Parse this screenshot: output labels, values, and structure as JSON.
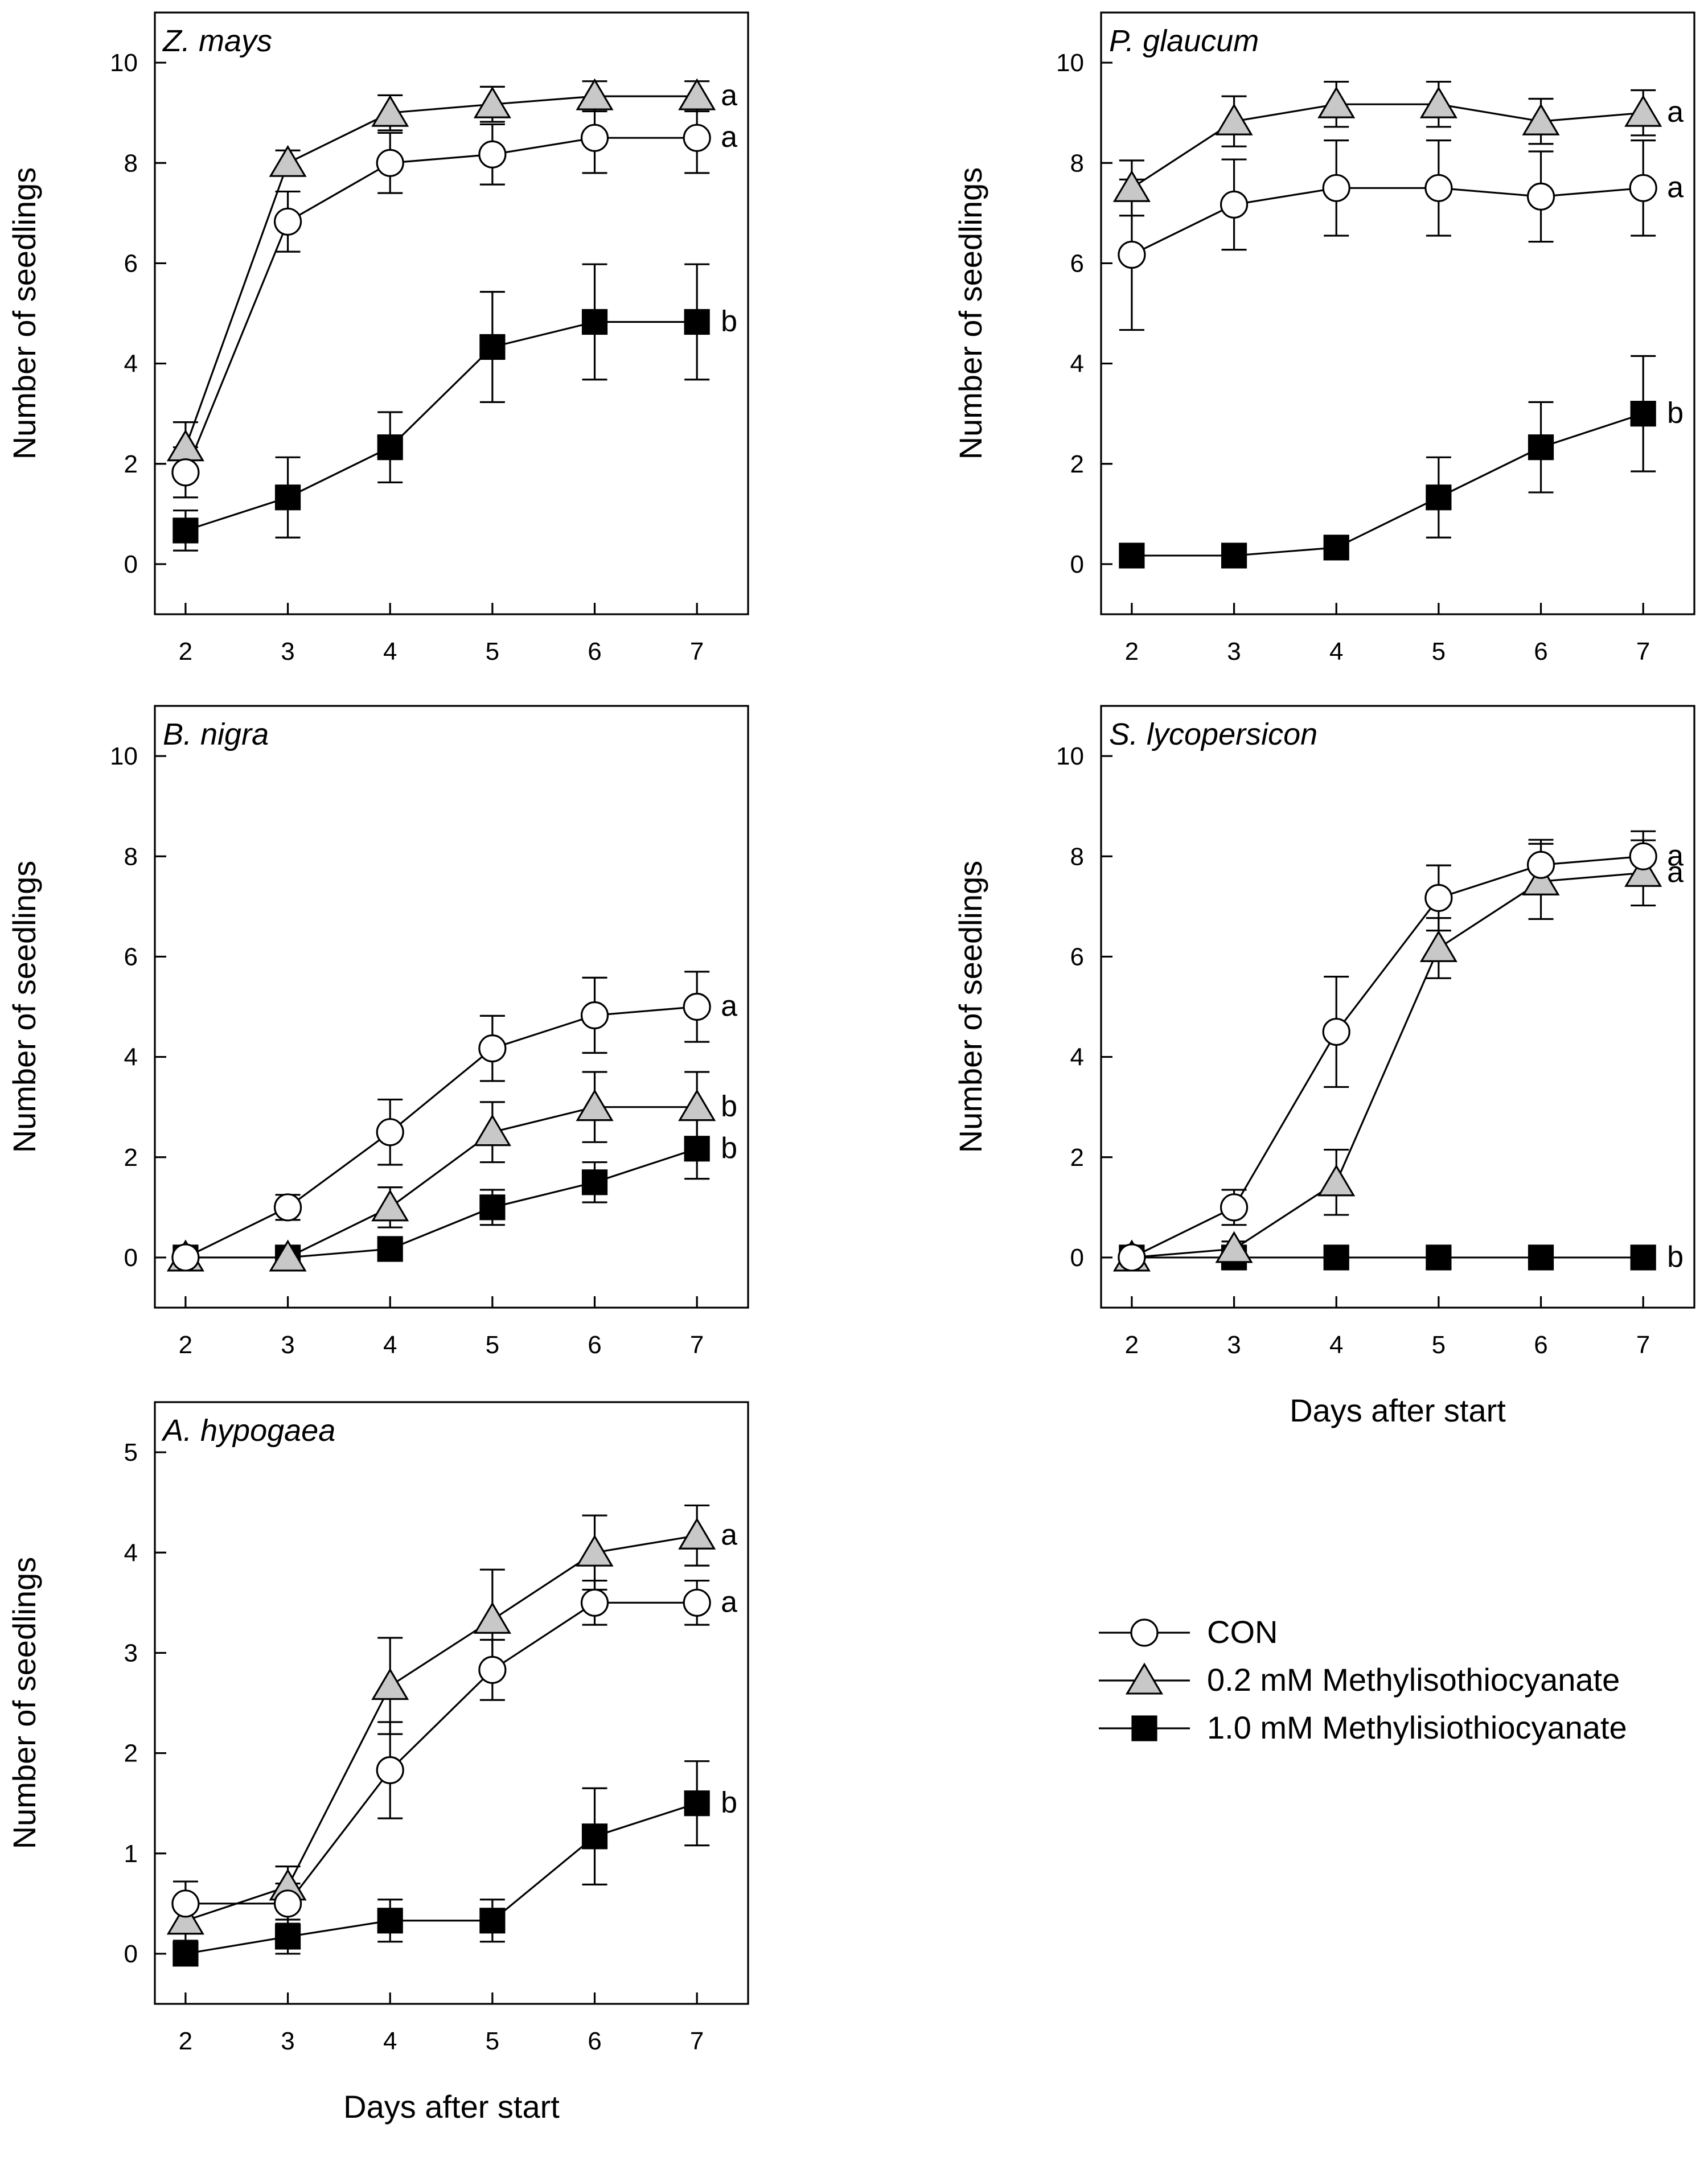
{
  "legend": {
    "items": [
      {
        "label": "CON",
        "marker": "circle",
        "fill": "#ffffff"
      },
      {
        "label": "0.2 mM Methylisothiocyanate",
        "marker": "triangle",
        "fill": "#c8c8c8"
      },
      {
        "label": "1.0 mM Methylisiothiocyanate",
        "marker": "square",
        "fill": "#000000"
      }
    ]
  },
  "chart_data": [
    {
      "type": "line",
      "title": "Z. mays",
      "xlabel": "",
      "ylabel": "Number of seedlings",
      "x": [
        2,
        3,
        4,
        5,
        6,
        7
      ],
      "xlim": [
        1.7,
        7.5
      ],
      "ylim": [
        -1,
        11
      ],
      "yticks": [
        0,
        2,
        4,
        6,
        8,
        10
      ],
      "series": [
        {
          "name": "CON",
          "values": [
            1.83,
            6.83,
            8.0,
            8.17,
            8.5,
            8.5
          ],
          "errors": [
            0.5,
            0.6,
            0.6,
            0.6,
            0.7,
            0.7
          ],
          "letter": "a"
        },
        {
          "name": "0.2 mM Methylisothiocyanate",
          "values": [
            2.33,
            8.0,
            9.0,
            9.17,
            9.33,
            9.33
          ],
          "errors": [
            0.5,
            0.25,
            0.35,
            0.35,
            0.3,
            0.3
          ],
          "letter": "a"
        },
        {
          "name": "1.0 mM Methylisiothiocyanate",
          "values": [
            0.67,
            1.33,
            2.33,
            4.33,
            4.83,
            4.83
          ],
          "errors": [
            0.4,
            0.8,
            0.7,
            1.1,
            1.15,
            1.15
          ],
          "letter": "b"
        }
      ]
    },
    {
      "type": "line",
      "title": "P. glaucum",
      "xlabel": "",
      "ylabel": "Number of seedlings",
      "x": [
        2,
        3,
        4,
        5,
        6,
        7
      ],
      "xlim": [
        1.7,
        7.5
      ],
      "ylim": [
        -1,
        11
      ],
      "yticks": [
        0,
        2,
        4,
        6,
        8,
        10
      ],
      "series": [
        {
          "name": "CON",
          "values": [
            6.17,
            7.17,
            7.5,
            7.5,
            7.33,
            7.5
          ],
          "errors": [
            1.5,
            0.9,
            0.95,
            0.95,
            0.9,
            0.95
          ],
          "letter": "a"
        },
        {
          "name": "0.2 mM Methylisothiocyanate",
          "values": [
            7.5,
            8.83,
            9.17,
            9.17,
            8.83,
            9.0
          ],
          "errors": [
            0.55,
            0.5,
            0.45,
            0.45,
            0.45,
            0.45
          ],
          "letter": "a"
        },
        {
          "name": "1.0 mM Methylisiothiocyanate",
          "values": [
            0.17,
            0.17,
            0.33,
            1.33,
            2.33,
            3.0
          ],
          "errors": [
            0.17,
            0.17,
            0.2,
            0.8,
            0.9,
            1.15
          ],
          "letter": "b"
        }
      ]
    },
    {
      "type": "line",
      "title": "B. nigra",
      "xlabel": "",
      "ylabel": "Number of seedlings",
      "x": [
        2,
        3,
        4,
        5,
        6,
        7
      ],
      "xlim": [
        1.7,
        7.5
      ],
      "ylim": [
        -1,
        11
      ],
      "yticks": [
        0,
        2,
        4,
        6,
        8,
        10
      ],
      "series": [
        {
          "name": "CON",
          "values": [
            0.0,
            1.0,
            2.5,
            4.17,
            4.83,
            5.0
          ],
          "errors": [
            0.0,
            0.25,
            0.65,
            0.65,
            0.75,
            0.7
          ],
          "letter": "a"
        },
        {
          "name": "0.2 mM Methylisothiocyanate",
          "values": [
            0.0,
            0.0,
            1.0,
            2.5,
            3.0,
            3.0
          ],
          "errors": [
            0.0,
            0.0,
            0.4,
            0.6,
            0.7,
            0.7
          ],
          "letter": "b"
        },
        {
          "name": "1.0 mM Methylisiothiocyanate",
          "values": [
            0.0,
            0.0,
            0.17,
            1.0,
            1.5,
            2.17
          ],
          "errors": [
            0.0,
            0.0,
            0.17,
            0.35,
            0.4,
            0.6
          ],
          "letter": "b"
        }
      ]
    },
    {
      "type": "line",
      "title": "S. lycopersicon",
      "xlabel": "Days after start",
      "ylabel": "Number of seedlings",
      "x": [
        2,
        3,
        4,
        5,
        6,
        7
      ],
      "xlim": [
        1.7,
        7.5
      ],
      "ylim": [
        -1,
        11
      ],
      "yticks": [
        0,
        2,
        4,
        6,
        8,
        10
      ],
      "series": [
        {
          "name": "CON",
          "values": [
            0.0,
            1.0,
            4.5,
            7.17,
            7.83,
            8.0
          ],
          "errors": [
            0.0,
            0.35,
            1.1,
            0.65,
            0.5,
            0.5
          ],
          "letter": "a"
        },
        {
          "name": "0.2 mM Methylisothiocyanate",
          "values": [
            0.0,
            0.17,
            1.5,
            6.17,
            7.5,
            7.67
          ],
          "errors": [
            0.0,
            0.15,
            0.65,
            0.6,
            0.75,
            0.65
          ],
          "letter": "a"
        },
        {
          "name": "1.0 mM Methylisiothiocyanate",
          "values": [
            0.0,
            0.0,
            0.0,
            0.0,
            0.0,
            0.0
          ],
          "errors": [
            0,
            0,
            0,
            0,
            0,
            0
          ],
          "letter": "b"
        }
      ]
    },
    {
      "type": "line",
      "title": "A. hypogaea",
      "xlabel": "Days after start",
      "ylabel": "Number of seedlings",
      "x": [
        2,
        3,
        4,
        5,
        6,
        7
      ],
      "xlim": [
        1.7,
        7.5
      ],
      "ylim": [
        -0.5,
        5.5
      ],
      "yticks": [
        0,
        1,
        2,
        3,
        4,
        5
      ],
      "series": [
        {
          "name": "CON",
          "values": [
            0.5,
            0.5,
            1.83,
            2.83,
            3.5,
            3.5
          ],
          "errors": [
            0.22,
            0.2,
            0.48,
            0.3,
            0.22,
            0.22
          ],
          "letter": "a"
        },
        {
          "name": "0.2 mM Methylisothiocyanate",
          "values": [
            0.33,
            0.67,
            2.67,
            3.33,
            4.0,
            4.17
          ],
          "errors": [
            0.2,
            0.2,
            0.48,
            0.5,
            0.37,
            0.3
          ],
          "letter": "a"
        },
        {
          "name": "1.0 mM Methylisiothiocyanate",
          "values": [
            0.0,
            0.17,
            0.33,
            0.33,
            1.17,
            1.5
          ],
          "errors": [
            0.0,
            0.17,
            0.21,
            0.21,
            0.48,
            0.42
          ],
          "letter": "b"
        }
      ]
    }
  ]
}
